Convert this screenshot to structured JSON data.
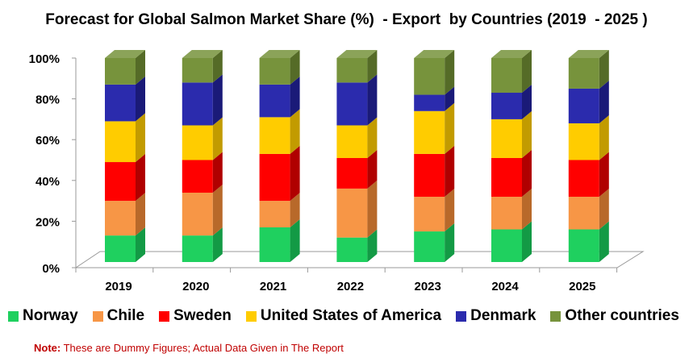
{
  "chart_data": {
    "type": "bar",
    "stacked": true,
    "three_d": true,
    "title": "Forecast for Global Salmon Market Share (%)  - Export  by Countries (2019  - 2025 )",
    "categories": [
      "2019",
      "2020",
      "2021",
      "2022",
      "2023",
      "2024",
      "2025"
    ],
    "ylim": [
      0,
      100
    ],
    "yticks": [
      "0%",
      "20%",
      "40%",
      "60%",
      "80%",
      "100%"
    ],
    "grid": false,
    "legend_position": "bottom",
    "series": [
      {
        "name": "Norway",
        "color": "#1fd05f",
        "side": "#139a45",
        "values": [
          13,
          13,
          17,
          12,
          15,
          16,
          16
        ]
      },
      {
        "name": "Chile",
        "color": "#f79646",
        "side": "#b8692a",
        "values": [
          17,
          21,
          13,
          24,
          17,
          16,
          16
        ]
      },
      {
        "name": "Sweden",
        "color": "#ff0000",
        "side": "#b00000",
        "values": [
          19,
          16,
          23,
          15,
          21,
          19,
          18
        ]
      },
      {
        "name": "United States of America",
        "color": "#ffcc00",
        "side": "#c29b00",
        "values": [
          20,
          17,
          18,
          16,
          21,
          19,
          18
        ]
      },
      {
        "name": "Denmark",
        "color": "#2b2bad",
        "side": "#1a1a78",
        "values": [
          18,
          21,
          16,
          21,
          8,
          13,
          17
        ]
      },
      {
        "name": "Other countries",
        "color": "#77933c",
        "side": "#556b27",
        "values": [
          13,
          12,
          13,
          12,
          18,
          17,
          15
        ]
      }
    ]
  },
  "note": {
    "prefix": "Note:",
    "text": " These are Dummy Figures; Actual Data Given in The Report"
  }
}
